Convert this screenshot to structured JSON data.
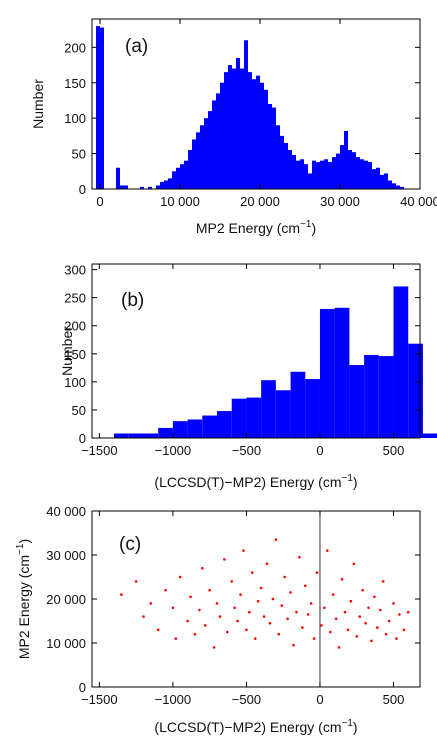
{
  "chart_data": [
    {
      "panel": "(a)",
      "type": "bar",
      "subtype": "histogram",
      "color": "#0000ff",
      "xlabel": "MP2 Energy (cm",
      "xlabel_sup": "−1",
      "xlabel_end": ")",
      "ylabel": "Number",
      "xlim": [
        -1000,
        40000
      ],
      "ylim": [
        0,
        240
      ],
      "xticks": [
        0,
        10000,
        20000,
        30000,
        40000
      ],
      "xtick_labels": [
        "0",
        "10 000",
        "20 000",
        "30 000",
        "40 000"
      ],
      "yticks": [
        0,
        50,
        100,
        150,
        200
      ],
      "ytick_labels": [
        "0",
        "50",
        "100",
        "150",
        "200"
      ],
      "bin_width": 500,
      "bins": [
        [
          -500,
          230
        ],
        [
          0,
          228
        ],
        [
          2000,
          30
        ],
        [
          2500,
          5
        ],
        [
          3000,
          5
        ],
        [
          5000,
          3
        ],
        [
          6000,
          3
        ],
        [
          7000,
          5
        ],
        [
          7500,
          10
        ],
        [
          8000,
          12
        ],
        [
          8500,
          15
        ],
        [
          9000,
          25
        ],
        [
          9500,
          30
        ],
        [
          10000,
          35
        ],
        [
          10500,
          40
        ],
        [
          11000,
          55
        ],
        [
          11500,
          70
        ],
        [
          12000,
          80
        ],
        [
          12500,
          90
        ],
        [
          13000,
          100
        ],
        [
          13500,
          110
        ],
        [
          14000,
          125
        ],
        [
          14500,
          135
        ],
        [
          15000,
          150
        ],
        [
          15500,
          165
        ],
        [
          16000,
          175
        ],
        [
          16500,
          170
        ],
        [
          17000,
          185
        ],
        [
          17500,
          170
        ],
        [
          18000,
          210
        ],
        [
          18500,
          165
        ],
        [
          19000,
          155
        ],
        [
          19500,
          160
        ],
        [
          20000,
          150
        ],
        [
          20500,
          140
        ],
        [
          21000,
          120
        ],
        [
          21500,
          115
        ],
        [
          22000,
          90
        ],
        [
          22500,
          75
        ],
        [
          23000,
          65
        ],
        [
          23500,
          55
        ],
        [
          24000,
          48
        ],
        [
          24500,
          40
        ],
        [
          25000,
          42
        ],
        [
          25500,
          35
        ],
        [
          26000,
          22
        ],
        [
          26500,
          40
        ],
        [
          27000,
          38
        ],
        [
          27500,
          40
        ],
        [
          28000,
          42
        ],
        [
          28500,
          38
        ],
        [
          29000,
          45
        ],
        [
          29500,
          50
        ],
        [
          30000,
          62
        ],
        [
          30500,
          82
        ],
        [
          31000,
          55
        ],
        [
          31500,
          52
        ],
        [
          32000,
          45
        ],
        [
          32500,
          42
        ],
        [
          33000,
          40
        ],
        [
          33500,
          38
        ],
        [
          34000,
          28
        ],
        [
          34500,
          30
        ],
        [
          35000,
          20
        ],
        [
          35500,
          22
        ],
        [
          36000,
          12
        ],
        [
          36500,
          8
        ],
        [
          37000,
          5
        ],
        [
          37500,
          3
        ]
      ]
    },
    {
      "panel": "(b)",
      "type": "bar",
      "subtype": "histogram",
      "color": "#0000ff",
      "xlabel": "(LCCSD(T)−MP2) Energy (cm",
      "xlabel_sup": "−1",
      "xlabel_end": ")",
      "ylabel": "Number",
      "xlim": [
        -1550,
        680
      ],
      "ylim": [
        0,
        310
      ],
      "xticks": [
        -1500,
        -1000,
        -500,
        0,
        500
      ],
      "xtick_labels": [
        "−1500",
        "−1000",
        "−500",
        "0",
        "500"
      ],
      "yticks": [
        0,
        50,
        100,
        150,
        200,
        250,
        300
      ],
      "ytick_labels": [
        "0",
        "50",
        "100",
        "150",
        "200",
        "250",
        "300"
      ],
      "bin_width": 100,
      "bins": [
        [
          -1400,
          8
        ],
        [
          -1300,
          8
        ],
        [
          -1200,
          8
        ],
        [
          -1100,
          18
        ],
        [
          -1000,
          30
        ],
        [
          -900,
          33
        ],
        [
          -800,
          40
        ],
        [
          -700,
          48
        ],
        [
          -600,
          70
        ],
        [
          -500,
          72
        ],
        [
          -400,
          103
        ],
        [
          -300,
          85
        ],
        [
          -200,
          118
        ],
        [
          -100,
          105
        ],
        [
          0,
          230
        ],
        [
          100,
          232
        ],
        [
          200,
          130
        ],
        [
          300,
          148
        ],
        [
          400,
          146
        ],
        [
          500,
          270
        ],
        [
          600,
          168
        ],
        [
          700,
          8
        ]
      ]
    },
    {
      "panel": "(c)",
      "type": "scatter",
      "color": "#ff0000",
      "xlabel": "(LCCSD(T)−MP2) Energy (cm",
      "xlabel_sup": "−1",
      "xlabel_end": ")",
      "ylabel": "MP2 Energy (cm",
      "ylabel_sup": "−1",
      "ylabel_end": ")",
      "xlim": [
        -1550,
        680
      ],
      "ylim": [
        0,
        40000
      ],
      "xticks": [
        -1500,
        -1000,
        -500,
        0,
        500
      ],
      "xtick_labels": [
        "−1500",
        "−1000",
        "−500",
        "0",
        "500"
      ],
      "yticks": [
        0,
        10000,
        20000,
        30000,
        40000
      ],
      "ytick_labels": [
        "0",
        "10 000",
        "20 000",
        "30 000",
        "40 000"
      ],
      "reference_line_x": 0,
      "points": [
        [
          -1350,
          21000
        ],
        [
          -1250,
          24000
        ],
        [
          -1200,
          16000
        ],
        [
          -1150,
          19000
        ],
        [
          -1100,
          13000
        ],
        [
          -1050,
          22000
        ],
        [
          -1000,
          18000
        ],
        [
          -980,
          11000
        ],
        [
          -950,
          25000
        ],
        [
          -900,
          15000
        ],
        [
          -880,
          20500
        ],
        [
          -850,
          12000
        ],
        [
          -820,
          17500
        ],
        [
          -800,
          27000
        ],
        [
          -780,
          14000
        ],
        [
          -750,
          22000
        ],
        [
          -720,
          9000
        ],
        [
          -700,
          19000
        ],
        [
          -680,
          16000
        ],
        [
          -650,
          29000
        ],
        [
          -630,
          12500
        ],
        [
          -600,
          24000
        ],
        [
          -580,
          18000
        ],
        [
          -560,
          15000
        ],
        [
          -540,
          21000
        ],
        [
          -520,
          31000
        ],
        [
          -500,
          13000
        ],
        [
          -480,
          17000
        ],
        [
          -460,
          26000
        ],
        [
          -440,
          11000
        ],
        [
          -420,
          19500
        ],
        [
          -400,
          22500
        ],
        [
          -380,
          16000
        ],
        [
          -360,
          28000
        ],
        [
          -340,
          14500
        ],
        [
          -320,
          20000
        ],
        [
          -300,
          33500
        ],
        [
          -280,
          12000
        ],
        [
          -260,
          18500
        ],
        [
          -240,
          25000
        ],
        [
          -220,
          15500
        ],
        [
          -200,
          21500
        ],
        [
          -180,
          9500
        ],
        [
          -160,
          17000
        ],
        [
          -140,
          29500
        ],
        [
          -120,
          13500
        ],
        [
          -100,
          23000
        ],
        [
          -80,
          16500
        ],
        [
          -60,
          19000
        ],
        [
          -40,
          11000
        ],
        [
          -20,
          26000
        ],
        [
          10,
          14000
        ],
        [
          30,
          18000
        ],
        [
          50,
          31000
        ],
        [
          70,
          12500
        ],
        [
          90,
          21000
        ],
        [
          110,
          15500
        ],
        [
          130,
          9000
        ],
        [
          150,
          24500
        ],
        [
          170,
          17000
        ],
        [
          190,
          13000
        ],
        [
          210,
          19500
        ],
        [
          230,
          28000
        ],
        [
          250,
          11500
        ],
        [
          270,
          16000
        ],
        [
          290,
          22000
        ],
        [
          310,
          14500
        ],
        [
          330,
          18000
        ],
        [
          350,
          10500
        ],
        [
          370,
          20500
        ],
        [
          390,
          13500
        ],
        [
          410,
          17500
        ],
        [
          430,
          24000
        ],
        [
          450,
          12000
        ],
        [
          470,
          15000
        ],
        [
          500,
          19000
        ],
        [
          520,
          11000
        ],
        [
          540,
          16500
        ],
        [
          570,
          13000
        ],
        [
          600,
          17000
        ]
      ]
    }
  ]
}
